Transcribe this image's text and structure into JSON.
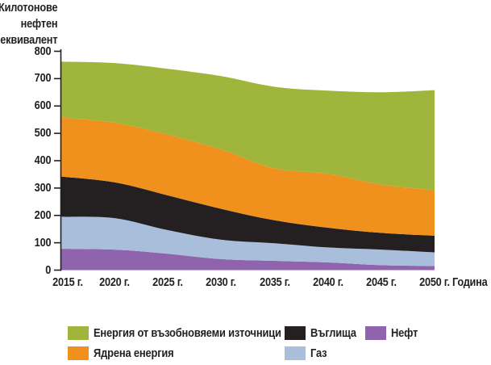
{
  "chart_data": {
    "type": "area",
    "stacked": true,
    "grid": false,
    "legend_position": "bottom",
    "xlabel": "Година",
    "ylabel_lines": [
      "Килотонове",
      "нефтен",
      "еквивалент"
    ],
    "x_years": [
      2015,
      2020,
      2025,
      2030,
      2035,
      2040,
      2045,
      2050
    ],
    "x_tick_labels": [
      "2015 г.",
      "2020 г.",
      "2025 г.",
      "2030 г.",
      "2035 г.",
      "2040 г.",
      "2045 г.",
      "2050 г."
    ],
    "y_ticks": [
      0,
      100,
      200,
      300,
      400,
      500,
      600,
      700,
      800
    ],
    "ylim": [
      0,
      800
    ],
    "series": [
      {
        "key": "oil",
        "name": "Нефт",
        "color": "#8f63ad",
        "values": [
          78,
          75,
          60,
          40,
          34,
          28,
          18,
          15
        ]
      },
      {
        "key": "gas",
        "name": "Газ",
        "color": "#a9bedb",
        "values": [
          117,
          115,
          86,
          71,
          64,
          55,
          57,
          50
        ]
      },
      {
        "key": "coal",
        "name": "Въглища",
        "color": "#241f21",
        "values": [
          147,
          131,
          127,
          113,
          84,
          72,
          61,
          61
        ]
      },
      {
        "key": "nuclear",
        "name": "Ядрена енергия",
        "color": "#f0911e",
        "values": [
          216,
          218,
          222,
          217,
          190,
          197,
          177,
          166
        ]
      },
      {
        "key": "renewables",
        "name": "Енергия от възобновяеми източници",
        "color": "#a0b53c",
        "values": [
          204,
          218,
          241,
          268,
          298,
          304,
          337,
          366
        ]
      }
    ],
    "cumulative_totals": [
      762,
      757,
      736,
      709,
      670,
      656,
      650,
      658
    ],
    "axis_color": "#231f20",
    "text_color": "#231f20",
    "background_color": "#ffffff"
  }
}
